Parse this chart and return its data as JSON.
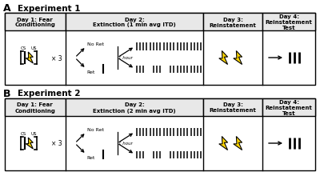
{
  "fig_width": 4.0,
  "fig_height": 2.26,
  "dpi": 100,
  "background": "#ffffff",
  "col_headers_A": [
    "Day 1: Fear\nConditioning",
    "Day 2:\nExtinction (1 min avg ITD)",
    "Day 3:\nReinstatement",
    "Day 4:\nReinstatement\nTest"
  ],
  "col_headers_B": [
    "Day 1: Fear\nConditioning",
    "Day 2:\nExtinction (2 min avg ITD)",
    "Day 3:\nReinstatement",
    "Day 4:\nReinstatement\nTest"
  ],
  "exp1_title": "Experiment 1",
  "exp2_title": "Experiment 2",
  "bolt_color": "#FFD700",
  "bolt_edge": "#000000",
  "header_bg": "#e8e8e8"
}
